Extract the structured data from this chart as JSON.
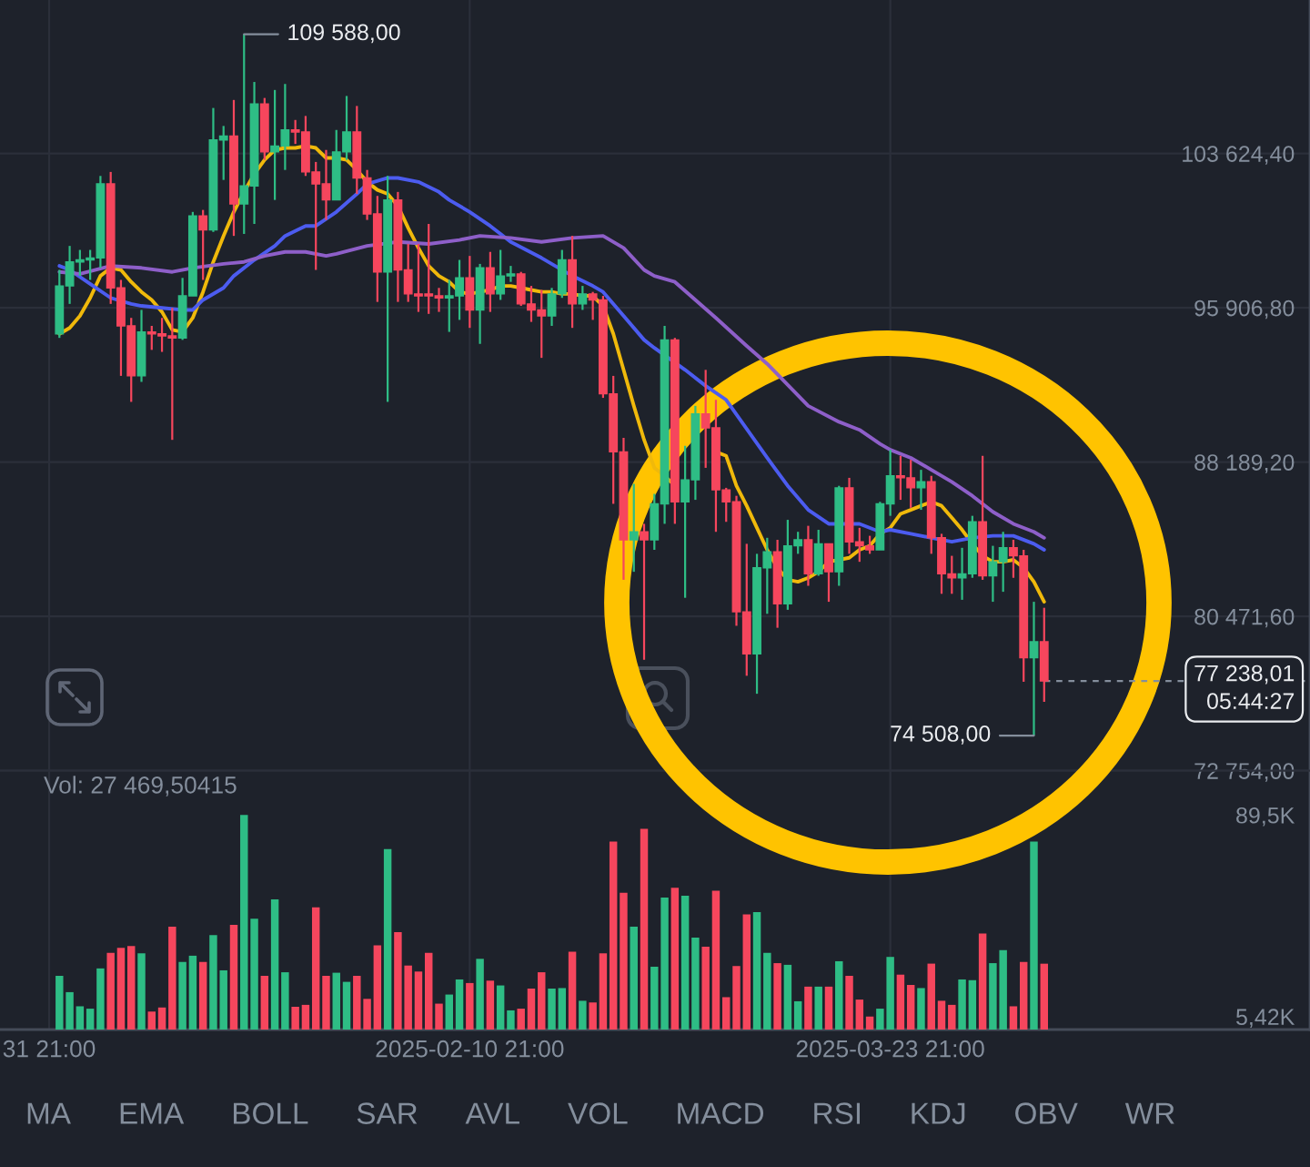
{
  "chart_data": [
    {
      "type": "candlestick",
      "x": [
        "2025-01-01T21:00",
        "2025-01-02T21:00",
        "2025-01-03T21:00",
        "2025-01-04T21:00",
        "2025-01-05T21:00",
        "2025-01-06T21:00",
        "2025-01-07T21:00",
        "2025-01-08T21:00",
        "2025-01-09T21:00",
        "2025-01-10T21:00",
        "2025-01-11T21:00",
        "2025-01-12T21:00",
        "2025-01-13T21:00",
        "2025-01-14T21:00",
        "2025-01-15T21:00",
        "2025-01-16T21:00",
        "2025-01-17T21:00",
        "2025-01-18T21:00",
        "2025-01-19T21:00",
        "2025-01-20T21:00",
        "2025-01-21T21:00",
        "2025-01-22T21:00",
        "2025-01-23T21:00",
        "2025-01-24T21:00",
        "2025-01-25T21:00",
        "2025-01-26T21:00",
        "2025-01-27T21:00",
        "2025-01-28T21:00",
        "2025-01-29T21:00",
        "2025-01-30T21:00",
        "2025-01-31T21:00",
        "2025-02-01T21:00",
        "2025-02-02T21:00",
        "2025-02-03T21:00",
        "2025-02-04T21:00",
        "2025-02-05T21:00",
        "2025-02-06T21:00",
        "2025-02-07T21:00",
        "2025-02-08T21:00",
        "2025-02-09T21:00",
        "2025-02-10T21:00",
        "2025-02-11T21:00",
        "2025-02-12T21:00",
        "2025-02-13T21:00",
        "2025-02-14T21:00",
        "2025-02-15T21:00",
        "2025-02-16T21:00",
        "2025-02-17T21:00",
        "2025-02-18T21:00",
        "2025-02-19T21:00",
        "2025-02-20T21:00",
        "2025-02-21T21:00",
        "2025-02-22T21:00",
        "2025-02-23T21:00",
        "2025-02-24T21:00",
        "2025-02-25T21:00",
        "2025-02-26T21:00",
        "2025-02-27T21:00",
        "2025-02-28T21:00",
        "2025-03-01T21:00",
        "2025-03-02T21:00",
        "2025-03-03T21:00",
        "2025-03-04T21:00",
        "2025-03-05T21:00",
        "2025-03-06T21:00",
        "2025-03-07T21:00",
        "2025-03-08T21:00",
        "2025-03-09T21:00",
        "2025-03-10T21:00",
        "2025-03-11T21:00",
        "2025-03-12T21:00",
        "2025-03-13T21:00",
        "2025-03-14T21:00",
        "2025-03-15T21:00",
        "2025-03-16T21:00",
        "2025-03-17T21:00",
        "2025-03-18T21:00",
        "2025-03-19T21:00",
        "2025-03-20T21:00",
        "2025-03-21T21:00",
        "2025-03-22T21:00",
        "2025-03-23T21:00",
        "2025-03-24T21:00",
        "2025-03-25T21:00",
        "2025-03-26T21:00",
        "2025-03-27T21:00",
        "2025-03-28T21:00",
        "2025-03-29T21:00",
        "2025-03-30T21:00",
        "2025-03-31T21:00",
        "2025-04-01T21:00",
        "2025-04-02T21:00",
        "2025-04-03T21:00",
        "2025-04-04T21:00",
        "2025-04-05T21:00",
        "2025-04-06T21:00",
        "2025-04-07T21:00"
      ],
      "ohlc": [
        [
          94600,
          97800,
          94400,
          97000
        ],
        [
          97000,
          99000,
          96100,
          98200
        ],
        [
          98200,
          98800,
          97500,
          98300
        ],
        [
          98300,
          98800,
          97300,
          98400
        ],
        [
          98400,
          102500,
          97900,
          102100
        ],
        [
          102100,
          102700,
          96100,
          96900
        ],
        [
          96900,
          97300,
          92500,
          95000
        ],
        [
          95000,
          95400,
          91200,
          92500
        ],
        [
          92500,
          95800,
          92200,
          94700
        ],
        [
          94700,
          95000,
          93800,
          94600
        ],
        [
          94600,
          95400,
          93700,
          94500
        ],
        [
          94500,
          95900,
          89300,
          94400
        ],
        [
          94400,
          97400,
          94300,
          96500
        ],
        [
          96500,
          100700,
          96500,
          100500
        ],
        [
          100500,
          100800,
          97300,
          99800
        ],
        [
          99800,
          105900,
          99700,
          104300
        ],
        [
          104300,
          105000,
          102300,
          104500
        ],
        [
          104500,
          106300,
          99500,
          101100
        ],
        [
          101100,
          109588,
          99600,
          102000
        ],
        [
          102000,
          107200,
          100100,
          106100
        ],
        [
          106100,
          106400,
          103300,
          103700
        ],
        [
          103700,
          106800,
          101300,
          104000
        ],
        [
          104000,
          107100,
          102800,
          104800
        ],
        [
          104800,
          105300,
          104100,
          104700
        ],
        [
          104700,
          105500,
          102500,
          102700
        ],
        [
          102700,
          103200,
          97800,
          102100
        ],
        [
          102100,
          103800,
          100300,
          101300
        ],
        [
          101300,
          104800,
          101300,
          103700
        ],
        [
          103700,
          106500,
          103300,
          104700
        ],
        [
          104700,
          106000,
          101600,
          102400
        ],
        [
          102400,
          102800,
          100300,
          100600
        ],
        [
          100600,
          101500,
          96200,
          97700
        ],
        [
          97700,
          102500,
          91200,
          101300
        ],
        [
          101300,
          101700,
          96200,
          97800
        ],
        [
          97800,
          99100,
          96200,
          96600
        ],
        [
          96600,
          99100,
          95700,
          96500
        ],
        [
          96600,
          100100,
          95600,
          96500
        ],
        [
          96500,
          96900,
          95700,
          96400
        ],
        [
          96400,
          97300,
          94700,
          96500
        ],
        [
          96500,
          98300,
          95300,
          97400
        ],
        [
          97400,
          98500,
          94900,
          95800
        ],
        [
          95800,
          98100,
          94100,
          97900
        ],
        [
          97900,
          98700,
          95700,
          96600
        ],
        [
          96600,
          98800,
          96300,
          97500
        ],
        [
          97500,
          98000,
          97200,
          97600
        ],
        [
          97600,
          97700,
          96000,
          96100
        ],
        [
          96100,
          97000,
          95200,
          95800
        ],
        [
          95800,
          96800,
          93400,
          95500
        ],
        [
          95500,
          96900,
          95000,
          96600
        ],
        [
          96600,
          98800,
          96400,
          98300
        ],
        [
          98300,
          99500,
          94900,
          96100
        ],
        [
          96100,
          97000,
          95800,
          96600
        ],
        [
          96600,
          96700,
          95300,
          96300
        ],
        [
          96300,
          96500,
          91400,
          91600
        ],
        [
          91600,
          92500,
          86100,
          88700
        ],
        [
          88700,
          89400,
          82300,
          84300
        ],
        [
          84300,
          87100,
          82700,
          84700
        ],
        [
          84700,
          85100,
          78300,
          84300
        ],
        [
          84300,
          86600,
          83800,
          86100
        ],
        [
          86100,
          95000,
          85100,
          94300
        ],
        [
          94300,
          94400,
          85100,
          86200
        ],
        [
          86200,
          89000,
          81400,
          87300
        ],
        [
          87300,
          91000,
          86300,
          90600
        ],
        [
          90600,
          92800,
          87900,
          89900
        ],
        [
          89900,
          91300,
          84700,
          86800
        ],
        [
          86800,
          86900,
          85200,
          86200
        ],
        [
          86200,
          86500,
          80000,
          80700
        ],
        [
          80700,
          84100,
          77500,
          78600
        ],
        [
          78600,
          83600,
          76600,
          82900
        ],
        [
          82900,
          84400,
          80600,
          83700
        ],
        [
          83700,
          84300,
          79900,
          81100
        ],
        [
          81100,
          85300,
          80800,
          84000
        ],
        [
          84000,
          84700,
          83600,
          84300
        ],
        [
          84300,
          85000,
          82000,
          82600
        ],
        [
          82600,
          84800,
          82500,
          84100
        ],
        [
          84100,
          84100,
          81200,
          82700
        ],
        [
          82700,
          87000,
          82000,
          86900
        ],
        [
          86900,
          87400,
          83600,
          84200
        ],
        [
          84200,
          84900,
          83200,
          84000
        ],
        [
          84000,
          84500,
          83600,
          83800
        ],
        [
          83800,
          86200,
          83800,
          86100
        ],
        [
          86100,
          88800,
          85500,
          87500
        ],
        [
          87500,
          88500,
          86300,
          87400
        ],
        [
          87400,
          88300,
          85900,
          86900
        ],
        [
          86900,
          87800,
          85800,
          87200
        ],
        [
          87200,
          87500,
          83600,
          84400
        ],
        [
          84400,
          84600,
          81600,
          82600
        ],
        [
          82600,
          83500,
          81600,
          82400
        ],
        [
          82400,
          83900,
          81300,
          82600
        ],
        [
          82600,
          85500,
          82400,
          85200
        ],
        [
          85200,
          88500,
          82300,
          82500
        ],
        [
          82500,
          84000,
          81200,
          83200
        ],
        [
          83200,
          84700,
          81700,
          83900
        ],
        [
          83900,
          84300,
          82400,
          83500
        ],
        [
          83500,
          83800,
          77200,
          78400
        ],
        [
          78400,
          81200,
          74508,
          79200
        ],
        [
          79200,
          80900,
          76200,
          77238.01
        ]
      ],
      "colors": [
        "#2ebd85",
        "#2ebd85",
        "#2ebd85",
        "#2ebd85",
        "#2ebd85",
        "#f6465d",
        "#f6465d",
        "#f6465d",
        "#2ebd85",
        "#f6465d",
        "#f6465d",
        "#f6465d",
        "#2ebd85",
        "#2ebd85",
        "#f6465d",
        "#2ebd85",
        "#2ebd85",
        "#f6465d",
        "#2ebd85",
        "#2ebd85",
        "#f6465d",
        "#2ebd85",
        "#2ebd85",
        "#f6465d",
        "#f6465d",
        "#f6465d",
        "#f6465d",
        "#2ebd85",
        "#2ebd85",
        "#f6465d",
        "#f6465d",
        "#f6465d",
        "#2ebd85",
        "#f6465d",
        "#f6465d",
        "#f6465d",
        "#f6465d",
        "#f6465d",
        "#2ebd85",
        "#2ebd85",
        "#f6465d",
        "#2ebd85",
        "#f6465d",
        "#2ebd85",
        "#2ebd85",
        "#f6465d",
        "#f6465d",
        "#f6465d",
        "#2ebd85",
        "#2ebd85",
        "#f6465d",
        "#2ebd85",
        "#f6465d",
        "#f6465d",
        "#f6465d",
        "#f6465d",
        "#2ebd85",
        "#f6465d",
        "#2ebd85",
        "#2ebd85",
        "#f6465d",
        "#2ebd85",
        "#2ebd85",
        "#f6465d",
        "#f6465d",
        "#f6465d",
        "#f6465d",
        "#f6465d",
        "#2ebd85",
        "#2ebd85",
        "#f6465d",
        "#2ebd85",
        "#2ebd85",
        "#f6465d",
        "#2ebd85",
        "#f6465d",
        "#2ebd85",
        "#f6465d",
        "#f6465d",
        "#f6465d",
        "#2ebd85",
        "#2ebd85",
        "#f6465d",
        "#f6465d",
        "#2ebd85",
        "#f6465d",
        "#f6465d",
        "#f6465d",
        "#2ebd85",
        "#2ebd85",
        "#f6465d",
        "#2ebd85",
        "#2ebd85",
        "#f6465d",
        "#f6465d",
        "#2ebd85",
        "#f6465d"
      ],
      "series": [
        {
          "type": "line",
          "color": "#f0b90b",
          "values": [
            94600,
            94900,
            95500,
            96400,
            97500,
            97900,
            97800,
            97200,
            96700,
            96300,
            95700,
            94800,
            94700,
            95400,
            96700,
            98200,
            99500,
            100700,
            101700,
            102600,
            103300,
            103800,
            103900,
            103900,
            104000,
            103900,
            103400,
            103400,
            103300,
            102800,
            102200,
            101800,
            101600,
            101000,
            99900,
            98900,
            98000,
            97500,
            97200,
            96700,
            96600,
            96700,
            96800,
            97000,
            97000,
            96900,
            96800,
            96700,
            96700,
            96600,
            96600,
            96500,
            96500,
            96000,
            94600,
            92800,
            91000,
            89300,
            87900,
            87500,
            87000,
            null,
            null,
            null,
            88700,
            88500,
            87000,
            86000,
            84900,
            83800,
            82900,
            82300,
            82200,
            82400,
            82700,
            83200,
            83300,
            83400,
            83800,
            84000,
            84600,
            84900,
            85600,
            85800,
            86000,
            86200,
            86000,
            85400,
            84800,
            84100,
            83500,
            83200,
            83200,
            83300,
            82900,
            82200,
            81200
          ]
        },
        {
          "type": "line",
          "color": "#4c5cf0",
          "x": [
            "2025-01-01T21:00",
            "2025-01-02T21:00",
            "2025-01-04T21:00",
            "2025-01-06T21:00",
            "2025-01-08T21:00",
            "2025-01-09T21:00",
            "2025-01-11T21:00",
            "2025-01-13T21:00",
            "2025-01-14T21:00",
            "2025-01-15T21:00",
            "2025-01-17T21:00",
            "2025-01-18T21:00",
            "2025-01-20T21:00",
            "2025-01-22T21:00",
            "2025-01-23T21:00",
            "2025-01-25T21:00",
            "2025-01-26T21:00",
            "2025-01-28T21:00",
            "2025-01-30T21:00",
            "2025-01-31T21:00",
            "2025-02-02T21:00",
            "2025-02-03T21:00",
            "2025-02-05T21:00",
            "2025-02-07T21:00",
            "2025-02-08T21:00",
            "2025-02-10T21:00",
            "2025-02-12T21:00",
            "2025-02-14T21:00",
            "2025-02-17T21:00",
            "2025-02-20T21:00",
            "2025-02-22T21:00",
            "2025-02-23T21:00",
            "2025-02-25T21:00",
            "2025-02-27T21:00",
            "2025-02-28T21:00",
            "2025-03-03T21:00",
            "2025-03-05T21:00",
            "2025-03-07T21:00",
            "2025-03-11T21:00",
            "2025-03-13T21:00",
            "2025-03-15T21:00",
            "2025-03-17T21:00",
            "2025-03-20T21:00",
            "2025-03-22T21:00",
            "2025-03-23T21:00",
            "2025-03-25T21:00",
            "2025-03-27T21:00",
            "2025-03-29T21:00",
            "2025-03-31T21:00",
            "2025-04-02T21:00",
            "2025-04-04T21:00",
            "2025-04-06T21:00",
            "2025-04-07T21:00"
          ],
          "values": [
            98000,
            97800,
            97100,
            96400,
            96100,
            96000,
            95900,
            95800,
            95800,
            96300,
            96900,
            97500,
            98300,
            99000,
            99500,
            100000,
            100000,
            100700,
            101600,
            102100,
            102400,
            102400,
            102200,
            101700,
            101300,
            100700,
            100000,
            99200,
            98400,
            97500,
            97000,
            96700,
            95500,
            94300,
            93900,
            92800,
            92000,
            91300,
            88400,
            87000,
            85800,
            85100,
            85100,
            84700,
            84800,
            84600,
            84400,
            84200,
            84400,
            84500,
            84500,
            84100,
            83800
          ]
        },
        {
          "type": "line",
          "color": "#8e5fc9",
          "x": [
            "2025-01-01T21:00",
            "2025-01-03T21:00",
            "2025-01-06T21:00",
            "2025-01-09T21:00",
            "2025-01-12T21:00",
            "2025-01-14T21:00",
            "2025-01-17T21:00",
            "2025-01-19T21:00",
            "2025-01-21T21:00",
            "2025-01-23T21:00",
            "2025-01-25T21:00",
            "2025-01-27T21:00",
            "2025-01-28T21:00",
            "2025-01-31T21:00",
            "2025-02-03T21:00",
            "2025-02-06T21:00",
            "2025-02-09T21:00",
            "2025-02-11T21:00",
            "2025-02-14T21:00",
            "2025-02-17T21:00",
            "2025-02-20T21:00",
            "2025-02-23T21:00",
            "2025-02-25T21:00",
            "2025-02-27T21:00",
            "2025-02-28T21:00",
            "2025-03-02T21:00",
            "2025-03-04T21:00",
            "2025-03-06T21:00",
            "2025-03-09T21:00",
            "2025-03-11T21:00",
            "2025-03-15T21:00",
            "2025-03-18T21:00",
            "2025-03-20T21:00",
            "2025-03-22T21:00",
            "2025-03-23T21:00",
            "2025-03-25T21:00",
            "2025-03-27T21:00",
            "2025-03-29T21:00",
            "2025-03-31T21:00",
            "2025-04-02T21:00",
            "2025-04-04T21:00",
            "2025-04-06T21:00",
            "2025-04-07T21:00"
          ],
          "values": [
            97700,
            97600,
            98000,
            97900,
            97700,
            97900,
            98100,
            98200,
            98500,
            98700,
            98700,
            98500,
            98600,
            99000,
            99200,
            99100,
            99300,
            99500,
            99400,
            99200,
            99400,
            99500,
            98900,
            97800,
            97500,
            97200,
            96300,
            95400,
            94000,
            93100,
            91000,
            90200,
            89800,
            89100,
            88800,
            88400,
            87800,
            87200,
            86500,
            85700,
            85100,
            84700,
            84400
          ]
        }
      ],
      "xlim": [
        "2024-12-27T02:00",
        "2025-05-03T19:00"
      ],
      "xticks": [
        {
          "value": "2024-12-31T21:00",
          "label": null
        },
        {
          "value": "2025-02-10T21:00",
          "label": null
        },
        {
          "value": "2025-03-23T21:00",
          "label": null
        }
      ],
      "ylim": [
        72754,
        111300
      ],
      "yticks": [
        {
          "value": 72754,
          "label": "72 754,00"
        },
        {
          "value": 80471.6,
          "label": "80 471,60"
        },
        {
          "value": 88189.2,
          "label": "88 189,20"
        },
        {
          "value": 95906.8,
          "label": "95 906,80"
        },
        {
          "value": 103624.4,
          "label": "103 624,40"
        }
      ],
      "grid": true,
      "tick_labels": "y",
      "annotations": [
        {
          "text": "109 588,00",
          "x": "2025-01-19T21:00",
          "y": 109588
        },
        {
          "text": "74 508,00",
          "x": "2025-04-06T21:00",
          "y": 74508
        }
      ],
      "ref_lines": [
        {
          "axis": "y",
          "value": 77238.01,
          "label": "77 238,01\n05:44:27",
          "line_style": "dashed",
          "color": "#848e9c"
        }
      ]
    },
    {
      "type": "bar",
      "x": [
        "2025-01-01T21:00",
        "2025-01-02T21:00",
        "2025-01-03T21:00",
        "2025-01-04T21:00",
        "2025-01-05T21:00",
        "2025-01-06T21:00",
        "2025-01-07T21:00",
        "2025-01-08T21:00",
        "2025-01-09T21:00",
        "2025-01-10T21:00",
        "2025-01-11T21:00",
        "2025-01-12T21:00",
        "2025-01-13T21:00",
        "2025-01-14T21:00",
        "2025-01-15T21:00",
        "2025-01-16T21:00",
        "2025-01-17T21:00",
        "2025-01-18T21:00",
        "2025-01-19T21:00",
        "2025-01-20T21:00",
        "2025-01-21T21:00",
        "2025-01-22T21:00",
        "2025-01-23T21:00",
        "2025-01-24T21:00",
        "2025-01-25T21:00",
        "2025-01-26T21:00",
        "2025-01-27T21:00",
        "2025-01-28T21:00",
        "2025-01-29T21:00",
        "2025-01-30T21:00",
        "2025-01-31T21:00",
        "2025-02-01T21:00",
        "2025-02-02T21:00",
        "2025-02-03T21:00",
        "2025-02-04T21:00",
        "2025-02-05T21:00",
        "2025-02-06T21:00",
        "2025-02-07T21:00",
        "2025-02-08T21:00",
        "2025-02-09T21:00",
        "2025-02-10T21:00",
        "2025-02-11T21:00",
        "2025-02-12T21:00",
        "2025-02-13T21:00",
        "2025-02-14T21:00",
        "2025-02-15T21:00",
        "2025-02-16T21:00",
        "2025-02-17T21:00",
        "2025-02-18T21:00",
        "2025-02-19T21:00",
        "2025-02-20T21:00",
        "2025-02-21T21:00",
        "2025-02-22T21:00",
        "2025-02-23T21:00",
        "2025-02-24T21:00",
        "2025-02-25T21:00",
        "2025-02-26T21:00",
        "2025-02-27T21:00",
        "2025-02-28T21:00",
        "2025-03-01T21:00",
        "2025-03-02T21:00",
        "2025-03-03T21:00",
        "2025-03-04T21:00",
        "2025-03-05T21:00",
        "2025-03-06T21:00",
        "2025-03-07T21:00",
        "2025-03-08T21:00",
        "2025-03-09T21:00",
        "2025-03-10T21:00",
        "2025-03-11T21:00",
        "2025-03-12T21:00",
        "2025-03-13T21:00",
        "2025-03-14T21:00",
        "2025-03-15T21:00",
        "2025-03-16T21:00",
        "2025-03-17T21:00",
        "2025-03-18T21:00",
        "2025-03-19T21:00",
        "2025-03-20T21:00",
        "2025-03-21T21:00",
        "2025-03-22T21:00",
        "2025-03-23T21:00",
        "2025-03-24T21:00",
        "2025-03-25T21:00",
        "2025-03-26T21:00",
        "2025-03-27T21:00",
        "2025-03-28T21:00",
        "2025-03-29T21:00",
        "2025-03-30T21:00",
        "2025-03-31T21:00",
        "2025-04-01T21:00",
        "2025-04-02T21:00",
        "2025-04-03T21:00",
        "2025-04-04T21:00",
        "2025-04-05T21:00",
        "2025-04-06T21:00",
        "2025-04-07T21:00"
      ],
      "values": [
        22400,
        15600,
        9700,
        8700,
        25500,
        32000,
        34100,
        34800,
        31800,
        7500,
        9200,
        42900,
        28200,
        30800,
        28200,
        39400,
        24700,
        43700,
        89500,
        46200,
        22400,
        54300,
        23900,
        9500,
        10300,
        51000,
        22400,
        23700,
        19900,
        22400,
        12800,
        35100,
        75300,
        40600,
        26700,
        24200,
        32000,
        10800,
        14600,
        20900,
        19400,
        29500,
        20400,
        18400,
        8000,
        8700,
        17100,
        23900,
        17100,
        17300,
        32500,
        12000,
        11300,
        31800,
        78400,
        57100,
        42900,
        83700,
        26200,
        55100,
        59100,
        55800,
        38400,
        34600,
        57900,
        13500,
        26500,
        48000,
        49000,
        32000,
        27700,
        27000,
        11800,
        17900,
        17900,
        17900,
        28500,
        22400,
        12500,
        5420,
        8700,
        30300,
        22900,
        18600,
        17300,
        27500,
        12000,
        10300,
        20900,
        20600,
        40100,
        27700,
        33100,
        9700,
        28200,
        78400,
        27469.50415
      ],
      "colors": [
        "#2ebd85",
        "#2ebd85",
        "#2ebd85",
        "#2ebd85",
        "#2ebd85",
        "#f6465d",
        "#f6465d",
        "#f6465d",
        "#2ebd85",
        "#f6465d",
        "#f6465d",
        "#f6465d",
        "#2ebd85",
        "#2ebd85",
        "#f6465d",
        "#2ebd85",
        "#2ebd85",
        "#f6465d",
        "#2ebd85",
        "#2ebd85",
        "#f6465d",
        "#2ebd85",
        "#2ebd85",
        "#f6465d",
        "#f6465d",
        "#f6465d",
        "#f6465d",
        "#2ebd85",
        "#2ebd85",
        "#f6465d",
        "#f6465d",
        "#f6465d",
        "#2ebd85",
        "#f6465d",
        "#f6465d",
        "#f6465d",
        "#f6465d",
        "#f6465d",
        "#2ebd85",
        "#2ebd85",
        "#f6465d",
        "#2ebd85",
        "#f6465d",
        "#2ebd85",
        "#2ebd85",
        "#f6465d",
        "#f6465d",
        "#f6465d",
        "#2ebd85",
        "#2ebd85",
        "#f6465d",
        "#2ebd85",
        "#f6465d",
        "#f6465d",
        "#f6465d",
        "#f6465d",
        "#2ebd85",
        "#f6465d",
        "#2ebd85",
        "#2ebd85",
        "#f6465d",
        "#2ebd85",
        "#2ebd85",
        "#f6465d",
        "#f6465d",
        "#f6465d",
        "#f6465d",
        "#f6465d",
        "#2ebd85",
        "#2ebd85",
        "#f6465d",
        "#2ebd85",
        "#2ebd85",
        "#f6465d",
        "#2ebd85",
        "#f6465d",
        "#2ebd85",
        "#f6465d",
        "#f6465d",
        "#f6465d",
        "#2ebd85",
        "#2ebd85",
        "#f6465d",
        "#f6465d",
        "#2ebd85",
        "#f6465d",
        "#f6465d",
        "#f6465d",
        "#2ebd85",
        "#2ebd85",
        "#f6465d",
        "#2ebd85",
        "#2ebd85",
        "#f6465d",
        "#f6465d",
        "#2ebd85",
        "#f6465d"
      ],
      "xlim": [
        "2024-12-27T02:00",
        "2025-05-03T19:00"
      ],
      "xticks": [
        {
          "value": "2024-12-31T21:00",
          "label": "31 21:00"
        },
        {
          "value": "2025-02-10T21:00",
          "label": "2025-02-10 21:00"
        },
        {
          "value": "2025-03-23T21:00",
          "label": "2025-03-23 21:00"
        }
      ],
      "ylim": [
        0,
        108000
      ],
      "yticks": [
        {
          "value": 5420,
          "label": "5,42K"
        },
        {
          "value": 89500,
          "label": "89,5K"
        }
      ],
      "grid": "x",
      "annotations": [
        "Vol: 27 469,50415"
      ]
    },
    {
      "type": "other",
      "annotations": [
        "MA",
        "EMA",
        "BOLL",
        "SAR",
        "AVL",
        "VOL",
        "MACD",
        "RSI",
        "KDJ",
        "OBV",
        "WR"
      ]
    }
  ]
}
